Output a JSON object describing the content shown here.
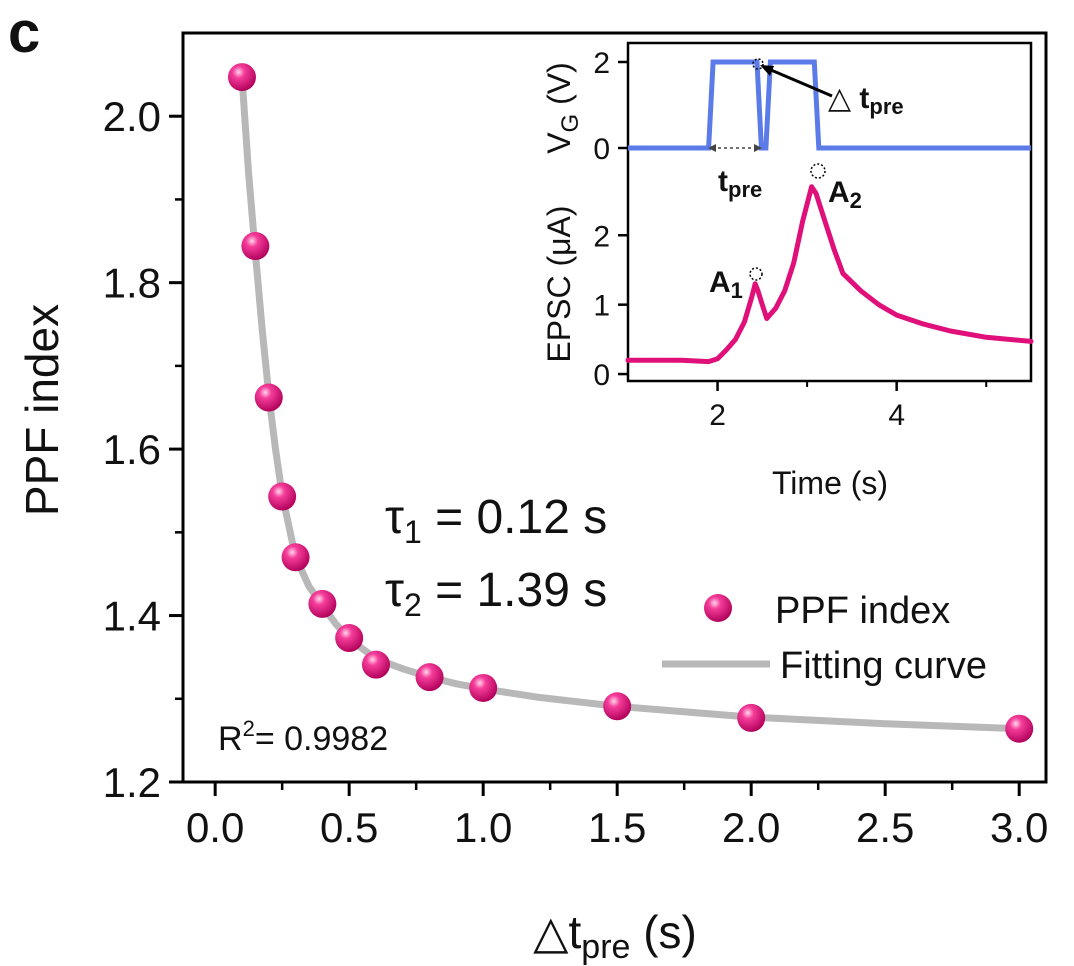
{
  "panel_label": "c",
  "chart_data": [
    {
      "type": "scatter",
      "xlabel": "△t",
      "xlabel_sub": "pre",
      "xlabel_unit": " (s)",
      "ylabel": "PPF index",
      "xlim": [
        -0.12,
        3.1
      ],
      "ylim": [
        1.2,
        2.1
      ],
      "xticks": [
        0.0,
        0.5,
        1.0,
        1.5,
        2.0,
        2.5,
        3.0
      ],
      "xtick_labels": [
        "0.0",
        "0.5",
        "1.0",
        "1.5",
        "2.0",
        "2.5",
        "3.0"
      ],
      "yticks": [
        1.2,
        1.4,
        1.6,
        1.8,
        2.0
      ],
      "ytick_labels": [
        "1.2",
        "1.4",
        "1.6",
        "1.8",
        "2.0"
      ],
      "series": [
        {
          "name": "PPF index",
          "kind": "points",
          "color": "#e0107a",
          "x": [
            0.1,
            0.15,
            0.2,
            0.25,
            0.3,
            0.4,
            0.5,
            0.6,
            0.8,
            1.0,
            1.5,
            2.0,
            3.0
          ],
          "y": [
            2.047,
            1.844,
            1.662,
            1.543,
            1.47,
            1.414,
            1.373,
            1.341,
            1.326,
            1.313,
            1.291,
            1.277,
            1.264
          ]
        },
        {
          "name": "Fitting curve",
          "kind": "line",
          "color": "#b8b8b8",
          "x": [
            0.1,
            0.125,
            0.15,
            0.175,
            0.2,
            0.225,
            0.25,
            0.3,
            0.35,
            0.4,
            0.45,
            0.5,
            0.6,
            0.7,
            0.8,
            0.9,
            1.0,
            1.2,
            1.5,
            1.8,
            2.0,
            2.5,
            3.0
          ],
          "y": [
            2.047,
            1.93,
            1.835,
            1.745,
            1.665,
            1.6,
            1.545,
            1.47,
            1.435,
            1.412,
            1.39,
            1.372,
            1.348,
            1.336,
            1.326,
            1.318,
            1.312,
            1.302,
            1.291,
            1.283,
            1.278,
            1.27,
            1.264
          ]
        }
      ],
      "legend": {
        "placement": "lower-right",
        "entries": [
          "PPF index",
          "Fitting curve"
        ]
      },
      "annotations": {
        "tau1_symbol": "τ",
        "tau1_sub": "1",
        "tau1_text": " = 0.12 s",
        "tau2_symbol": "τ",
        "tau2_sub": "2",
        "tau2_text": " = 1.39 s",
        "r2_base": "R",
        "r2_sup": "2",
        "r2_text": "= 0.9982"
      }
    },
    {
      "type": "line",
      "inset": true,
      "placement": "top-right",
      "xlabel": "Time (s)",
      "xlim": [
        1.0,
        5.5
      ],
      "xticks": [
        2,
        4
      ],
      "xtick_labels": [
        "2",
        "4"
      ],
      "top_panel": {
        "ylabel": "V",
        "ylabel_sub": "G",
        "ylabel_unit": " (V)",
        "ylim": [
          0,
          2
        ],
        "yticks": [
          0,
          2
        ],
        "ytick_labels": [
          "0",
          "2"
        ],
        "series": [
          {
            "color": "#5b7be8",
            "x": [
              1.0,
              1.9,
              1.95,
              2.44,
              2.49,
              2.54,
              2.59,
              3.08,
              3.13,
              5.5
            ],
            "y": [
              0,
              0,
              2,
              2,
              0,
              0,
              2,
              2,
              0,
              0
            ]
          }
        ],
        "annotations": {
          "t_pre_base": "t",
          "t_pre_sub": "pre",
          "dt_pre_prefix": "△ ",
          "dt_pre_base": "t",
          "dt_pre_sub": "pre"
        }
      },
      "bottom_panel": {
        "ylabel": "EPSC (μA)",
        "ylim": [
          -0.1,
          3.2
        ],
        "yticks": [
          0,
          1,
          2
        ],
        "ytick_labels": [
          "0",
          "1",
          "2"
        ],
        "series": [
          {
            "color": "#e0107a",
            "x": [
              1.0,
              1.3,
              1.6,
              1.9,
              2.0,
              2.1,
              2.2,
              2.3,
              2.38,
              2.42,
              2.45,
              2.5,
              2.55,
              2.65,
              2.75,
              2.85,
              2.95,
              3.05,
              3.1,
              3.2,
              3.3,
              3.4,
              3.6,
              3.8,
              4.0,
              4.3,
              4.6,
              5.0,
              5.5
            ],
            "y": [
              0.2,
              0.2,
              0.2,
              0.18,
              0.22,
              0.35,
              0.5,
              0.75,
              1.1,
              1.3,
              1.2,
              1.0,
              0.8,
              0.95,
              1.2,
              1.6,
              2.2,
              2.7,
              2.6,
              2.2,
              1.8,
              1.45,
              1.2,
              1.0,
              0.85,
              0.72,
              0.62,
              0.53,
              0.47
            ]
          }
        ],
        "annotations": {
          "a1_base": "A",
          "a1_sub": "1",
          "a2_base": "A",
          "a2_sub": "2"
        }
      }
    }
  ]
}
